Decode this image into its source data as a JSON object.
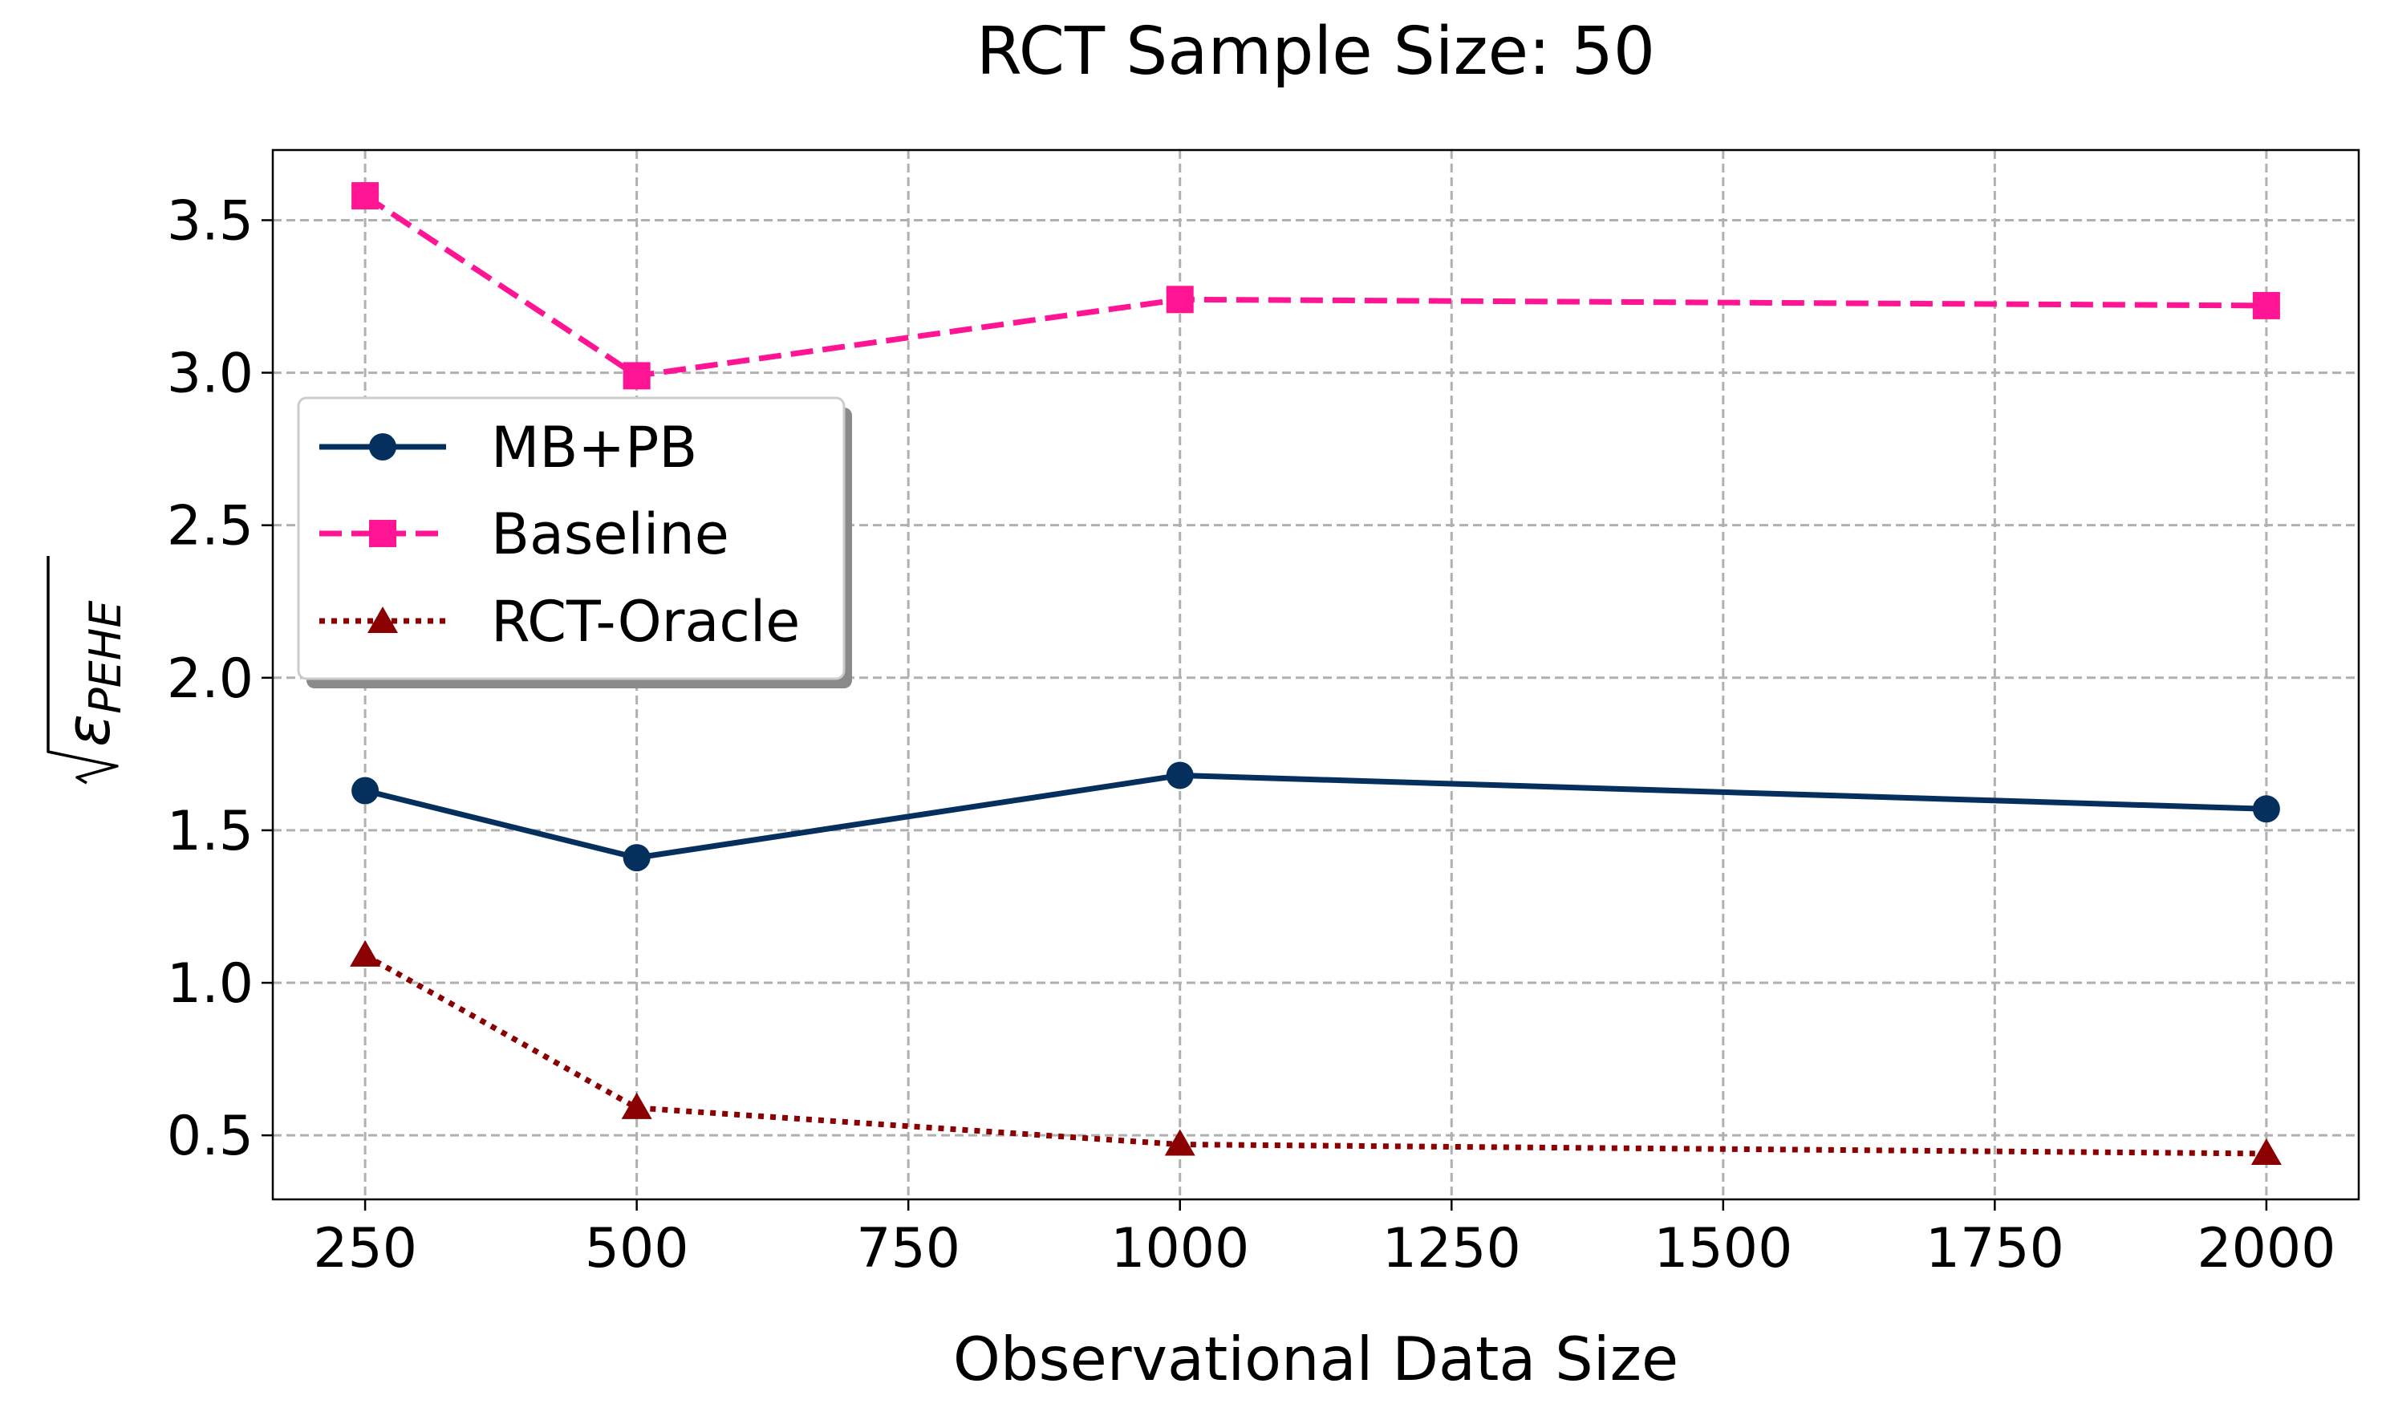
{
  "chart_data": {
    "type": "line",
    "title": "RCT Sample Size: 50",
    "xlabel": "Observational Data Size",
    "ylabel_base": "ε",
    "ylabel_sub": "PEHE",
    "xlim": [
      165,
      2085
    ],
    "ylim": [
      0.29,
      3.73
    ],
    "x_ticks": [
      250,
      500,
      750,
      1000,
      1250,
      1500,
      1750,
      2000
    ],
    "y_ticks": [
      0.5,
      1.0,
      1.5,
      2.0,
      2.5,
      3.0,
      3.5
    ],
    "x_tick_labels": [
      "250",
      "500",
      "750",
      "1000",
      "1250",
      "1500",
      "1750",
      "2000"
    ],
    "y_tick_labels": [
      "0.5",
      "1.0",
      "1.5",
      "2.0",
      "2.5",
      "3.0",
      "3.5"
    ],
    "grid": true,
    "legend_position": "upper-left",
    "x": [
      250,
      500,
      1000,
      2000
    ],
    "series": [
      {
        "name": "MB+PB",
        "values": [
          1.63,
          1.41,
          1.68,
          1.57
        ],
        "color": "#05305e",
        "linestyle": "solid",
        "marker": "circle"
      },
      {
        "name": "Baseline",
        "values": [
          3.58,
          2.99,
          3.24,
          3.22
        ],
        "color": "#ff1493",
        "linestyle": "dashed",
        "marker": "square"
      },
      {
        "name": "RCT-Oracle",
        "values": [
          1.09,
          0.59,
          0.47,
          0.44
        ],
        "color": "#8b0000",
        "linestyle": "dotted",
        "marker": "triangle"
      }
    ]
  }
}
